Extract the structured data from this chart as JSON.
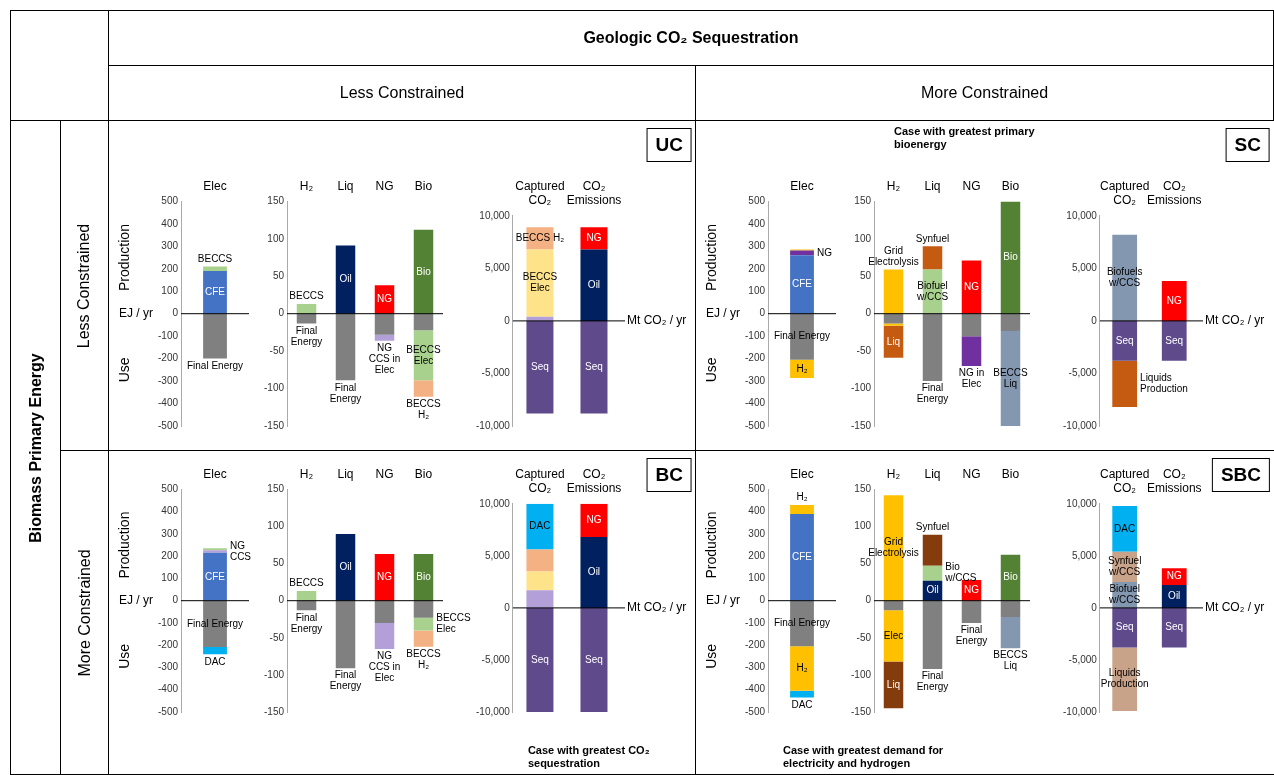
{
  "chart_data": [
    {
      "type": "other",
      "title": "Geologic CO₂ Sequestration",
      "annotations": [
        "Less Constrained",
        "More Constrained",
        "Biomass Primary Energy",
        "Less Constrained",
        "More Constrained",
        "UC",
        "SC",
        "BC",
        "SBC"
      ]
    },
    {
      "type": "bar",
      "stacked": true,
      "categories": [
        "Elec"
      ],
      "ylabel": "EJ / yr",
      "ylim": [
        -500,
        500
      ],
      "yticks": [
        -500,
        -400,
        -300,
        -200,
        -100,
        0,
        100,
        200,
        300,
        400,
        500
      ],
      "series": [
        {
          "name": "CFE",
          "color": "#4472c4",
          "values": [
            190
          ]
        },
        {
          "name": "BECCS",
          "color": "#a9d18e",
          "values": [
            20
          ]
        },
        {
          "name": "Final Energy",
          "color": "#808080",
          "values": [
            -200
          ]
        }
      ],
      "annotations": [
        "Production",
        "Use"
      ]
    },
    {
      "type": "bar",
      "stacked": true,
      "categories": [
        "H₂",
        "Liq",
        "NG",
        "Bio"
      ],
      "ylim": [
        -150,
        150
      ],
      "yticks": [
        -150,
        -100,
        -50,
        0,
        50,
        100,
        150
      ],
      "series": [
        {
          "name": "BECCS",
          "color": "#a9d18e",
          "values": [
            13,
            null,
            null,
            null
          ]
        },
        {
          "name": "Oil",
          "color": "#002060",
          "values": [
            null,
            91,
            null,
            null
          ]
        },
        {
          "name": "NG",
          "color": "#ff0000",
          "values": [
            null,
            null,
            38,
            null
          ]
        },
        {
          "name": "Bio",
          "color": "#548235",
          "values": [
            null,
            null,
            null,
            112
          ]
        },
        {
          "name": "Final Energy",
          "color": "#808080",
          "values": [
            -13,
            null,
            null,
            null
          ]
        },
        {
          "name": "Final Energy",
          "color": "#808080",
          "values": [
            null,
            -89,
            null,
            null
          ]
        },
        {
          "color": "#808080",
          "values": [
            null,
            null,
            -28,
            -22
          ]
        },
        {
          "name": "NG CCS in Elec",
          "color": "#b4a0d8",
          "values": [
            null,
            null,
            -8,
            null
          ]
        },
        {
          "name": "BECCS Elec",
          "color": "#a9d18e",
          "values": [
            null,
            null,
            null,
            -67
          ]
        },
        {
          "name": "BECCS H₂",
          "color": "#f4b183",
          "values": [
            null,
            null,
            null,
            -22
          ]
        }
      ]
    },
    {
      "type": "bar",
      "stacked": true,
      "categories": [
        "Captured CO₂",
        "CO₂ Emissions"
      ],
      "ylabel": "Mt CO₂ / yr",
      "ylim": [
        -10000,
        10000
      ],
      "yticks": [
        {
          "value": -10000,
          "label": "-10,000"
        },
        {
          "value": -5000,
          "label": "-5,000"
        },
        0,
        {
          "value": 5000,
          "label": "5,000"
        },
        {
          "value": 10000,
          "label": "10,000"
        }
      ],
      "series": [
        {
          "color": "#b4a0d8",
          "values": [
            400,
            null
          ]
        },
        {
          "name": "BECCS Elec",
          "color": "#ffe38a",
          "values": [
            6400,
            null
          ]
        },
        {
          "name": "BECCS H₂",
          "color": "#f4b183",
          "values": [
            2100,
            null
          ]
        },
        {
          "name": "Oil",
          "color": "#002060",
          "values": [
            null,
            6800
          ]
        },
        {
          "name": "NG",
          "color": "#ff0000",
          "values": [
            null,
            2100
          ]
        },
        {
          "name": "Seq",
          "color": "#5f4b8b",
          "values": [
            -8800,
            null
          ]
        },
        {
          "name": "Seq",
          "color": "#5f4b8b",
          "values": [
            null,
            -8800
          ]
        }
      ]
    },
    {
      "type": "bar",
      "stacked": true,
      "categories": [
        "Elec"
      ],
      "ylabel": "EJ / yr",
      "ylim": [
        -500,
        500
      ],
      "yticks": [
        -500,
        -400,
        -300,
        -200,
        -100,
        0,
        100,
        200,
        300,
        400,
        500
      ],
      "series": [
        {
          "name": "CFE",
          "color": "#4472c4",
          "values": [
            260
          ]
        },
        {
          "name": "NG",
          "color": "#7030a0",
          "values": [
            21
          ]
        },
        {
          "color": "#ffc000",
          "values": [
            5
          ]
        },
        {
          "name": "Final Energy",
          "color": "#808080",
          "values": [
            -205
          ]
        },
        {
          "name": "H₂",
          "color": "#ffc000",
          "values": [
            -81
          ]
        }
      ],
      "annotations": [
        "Production",
        "Use"
      ]
    },
    {
      "type": "bar",
      "stacked": true,
      "subtitle": "Case with greatest primary bioenergy",
      "categories": [
        "H₂",
        "Liq",
        "NG",
        "Bio"
      ],
      "ylim": [
        -150,
        150
      ],
      "yticks": [
        -150,
        -100,
        -50,
        0,
        50,
        100,
        150
      ],
      "series": [
        {
          "name": "Grid Electrolysis",
          "color": "#ffc000",
          "values": [
            59,
            null,
            null,
            null
          ]
        },
        {
          "name": "Biofuel w/CCS",
          "color": "#a9d18e",
          "values": [
            null,
            59,
            null,
            null
          ]
        },
        {
          "name": "Synfuel",
          "color": "#c55a11",
          "values": [
            null,
            31,
            null,
            null
          ]
        },
        {
          "name": "NG",
          "color": "#ff0000",
          "values": [
            null,
            null,
            71,
            null
          ]
        },
        {
          "name": "Bio",
          "color": "#548235",
          "values": [
            null,
            null,
            null,
            150
          ]
        },
        {
          "color": "#808080",
          "values": [
            -13,
            null,
            -30,
            -23
          ]
        },
        {
          "name": "Final Energy",
          "color": "#808080",
          "values": [
            null,
            -90,
            null,
            null
          ]
        },
        {
          "color": "#ffc000",
          "values": [
            -3,
            null,
            null,
            null
          ]
        },
        {
          "name": "Liq",
          "color": "#c55a11",
          "values": [
            -43,
            null,
            null,
            null
          ]
        },
        {
          "name": "NG in Elec",
          "color": "#7030a0",
          "values": [
            null,
            null,
            -40,
            null
          ]
        },
        {
          "name": "BECCS Liq",
          "color": "#8497b0",
          "values": [
            null,
            null,
            null,
            -127
          ]
        }
      ]
    },
    {
      "type": "bar",
      "stacked": true,
      "categories": [
        "Captured CO₂",
        "CO₂ Emissions"
      ],
      "ylabel": "Mt CO₂ / yr",
      "ylim": [
        -10000,
        10000
      ],
      "yticks": [
        {
          "value": -10000,
          "label": "-10,000"
        },
        {
          "value": -5000,
          "label": "-5,000"
        },
        0,
        {
          "value": 5000,
          "label": "5,000"
        },
        {
          "value": 10000,
          "label": "10,000"
        }
      ],
      "series": [
        {
          "name": "Biofuels w/CCS",
          "color": "#8497b0",
          "values": [
            8200,
            null
          ]
        },
        {
          "name": "NG",
          "color": "#ff0000",
          "values": [
            null,
            3800
          ]
        },
        {
          "name": "Seq",
          "color": "#5f4b8b",
          "values": [
            -3800,
            null
          ]
        },
        {
          "name": "Seq",
          "color": "#5f4b8b",
          "values": [
            null,
            -3800
          ]
        },
        {
          "name": "Liquids Production",
          "color": "#c55a11",
          "values": [
            -4400,
            null
          ]
        }
      ]
    },
    {
      "type": "bar",
      "stacked": true,
      "categories": [
        "Elec"
      ],
      "ylabel": "EJ / yr",
      "ylim": [
        -500,
        500
      ],
      "yticks": [
        -500,
        -400,
        -300,
        -200,
        -100,
        0,
        100,
        200,
        300,
        400,
        500
      ],
      "series": [
        {
          "name": "CFE",
          "color": "#4472c4",
          "values": [
            215
          ]
        },
        {
          "name": "NG CCS",
          "color": "#b4a0d8",
          "values": [
            12
          ]
        },
        {
          "color": "#a9d18e",
          "values": [
            9
          ]
        },
        {
          "name": "Final Energy",
          "color": "#808080",
          "values": [
            -208
          ]
        },
        {
          "name": "DAC",
          "color": "#00b0f0",
          "values": [
            -33
          ]
        }
      ],
      "annotations": [
        "Production",
        "Use"
      ]
    },
    {
      "type": "bar",
      "stacked": true,
      "categories": [
        "H₂",
        "Liq",
        "NG",
        "Bio"
      ],
      "ylim": [
        -150,
        150
      ],
      "yticks": [
        -150,
        -100,
        -50,
        0,
        50,
        100,
        150
      ],
      "series": [
        {
          "name": "BECCS",
          "color": "#a9d18e",
          "values": [
            13,
            null,
            null,
            null
          ]
        },
        {
          "name": "Oil",
          "color": "#002060",
          "values": [
            null,
            90,
            null,
            null
          ]
        },
        {
          "name": "NG",
          "color": "#ff0000",
          "values": [
            null,
            null,
            63,
            null
          ]
        },
        {
          "name": "Bio",
          "color": "#548235",
          "values": [
            null,
            null,
            null,
            63
          ]
        },
        {
          "name": "Final Energy",
          "color": "#808080",
          "values": [
            -13,
            null,
            null,
            null
          ]
        },
        {
          "name": "Final Energy",
          "color": "#808080",
          "values": [
            null,
            -91,
            null,
            null
          ]
        },
        {
          "color": "#808080",
          "values": [
            null,
            null,
            -30,
            -23
          ]
        },
        {
          "name": "NG CCS in Elec",
          "color": "#b4a0d8",
          "values": [
            null,
            null,
            -35,
            null
          ]
        },
        {
          "name": "BECCS Elec",
          "color": "#a9d18e",
          "values": [
            null,
            null,
            null,
            -17
          ]
        },
        {
          "name": "BECCS H₂",
          "color": "#f4b183",
          "values": [
            null,
            null,
            null,
            -22
          ]
        }
      ]
    },
    {
      "type": "bar",
      "stacked": true,
      "subtitle": "Case with greatest CO₂ sequestration",
      "categories": [
        "Captured CO₂",
        "CO₂ Emissions"
      ],
      "ylabel": "Mt CO₂ / yr",
      "ylim": [
        -10000,
        10000
      ],
      "yticks": [
        {
          "value": -10000,
          "label": "-10,000"
        },
        {
          "value": -5000,
          "label": "-5,000"
        },
        0,
        {
          "value": 5000,
          "label": "5,000"
        },
        {
          "value": 10000,
          "label": "10,000"
        }
      ],
      "series": [
        {
          "color": "#b4a0d8",
          "values": [
            1700,
            null
          ]
        },
        {
          "color": "#ffe38a",
          "values": [
            1800,
            null
          ]
        },
        {
          "color": "#f4b183",
          "values": [
            2100,
            null
          ]
        },
        {
          "name": "DAC",
          "color": "#00b0f0",
          "values": [
            4400,
            null
          ]
        },
        {
          "name": "Oil",
          "color": "#002060",
          "values": [
            null,
            6800
          ]
        },
        {
          "name": "NG",
          "color": "#ff0000",
          "values": [
            null,
            3200
          ]
        },
        {
          "name": "Seq",
          "color": "#5f4b8b",
          "values": [
            -10000,
            null
          ]
        },
        {
          "name": "Seq",
          "color": "#5f4b8b",
          "values": [
            null,
            -10000
          ]
        }
      ]
    },
    {
      "type": "bar",
      "stacked": true,
      "subtitle": "Case with greatest demand for electricity and hydrogen",
      "categories": [
        "Elec"
      ],
      "ylabel": "EJ / yr",
      "ylim": [
        -500,
        500
      ],
      "yticks": [
        -500,
        -400,
        -300,
        -200,
        -100,
        0,
        100,
        200,
        300,
        400,
        500
      ],
      "series": [
        {
          "name": "CFE",
          "color": "#4472c4",
          "values": [
            390
          ]
        },
        {
          "name": "H₂",
          "color": "#ffc000",
          "values": [
            40
          ]
        },
        {
          "name": "Final Energy",
          "color": "#808080",
          "values": [
            -205
          ]
        },
        {
          "name": "H₂",
          "color": "#ffc000",
          "values": [
            -200
          ]
        },
        {
          "name": "DAC",
          "color": "#00b0f0",
          "values": [
            -30
          ]
        }
      ],
      "annotations": [
        "Production",
        "Use"
      ]
    },
    {
      "type": "bar",
      "stacked": true,
      "categories": [
        "H₂",
        "Liq",
        "NG",
        "Bio"
      ],
      "ylim": [
        -150,
        150
      ],
      "yticks": [
        -150,
        -100,
        -50,
        0,
        50,
        100,
        150
      ],
      "series": [
        {
          "name": "Grid Electrolysis",
          "color": "#ffc000",
          "values": [
            142,
            null,
            null,
            null
          ]
        },
        {
          "name": "Oil",
          "color": "#002060",
          "values": [
            null,
            27,
            null,
            null
          ]
        },
        {
          "name": "Bio w/CCS",
          "color": "#a9d18e",
          "values": [
            null,
            20,
            null,
            null
          ]
        },
        {
          "name": "Synfuel",
          "color": "#843c0c",
          "values": [
            null,
            42,
            null,
            null
          ]
        },
        {
          "name": "NG",
          "color": "#ff0000",
          "values": [
            null,
            null,
            28,
            null
          ]
        },
        {
          "name": "Bio",
          "color": "#548235",
          "values": [
            null,
            null,
            null,
            62
          ]
        },
        {
          "color": "#808080",
          "values": [
            -13,
            null,
            null,
            -22
          ]
        },
        {
          "name": "Final Energy",
          "color": "#808080",
          "values": [
            null,
            -92,
            null,
            null
          ]
        },
        {
          "name": "Final Energy",
          "color": "#808080",
          "values": [
            null,
            null,
            -30,
            null
          ]
        },
        {
          "name": "Elec",
          "color": "#ffc000",
          "values": [
            -69,
            null,
            null,
            null
          ]
        },
        {
          "name": "Liq",
          "color": "#843c0c",
          "values": [
            -63,
            null,
            null,
            null
          ]
        },
        {
          "name": "BECCS Liq",
          "color": "#8497b0",
          "values": [
            null,
            null,
            null,
            -42
          ]
        }
      ]
    },
    {
      "type": "bar",
      "stacked": true,
      "categories": [
        "Captured CO₂",
        "CO₂ Emissions"
      ],
      "ylabel": "Mt CO₂ / yr",
      "ylim": [
        -10000,
        10000
      ],
      "yticks": [
        {
          "value": -10000,
          "label": "-10,000"
        },
        {
          "value": -5000,
          "label": "-5,000"
        },
        0,
        {
          "value": 5000,
          "label": "5,000"
        },
        {
          "value": 10000,
          "label": "10,000"
        }
      ],
      "series": [
        {
          "name": "Biofuel w/CCS",
          "color": "#8497b0",
          "values": [
            2500,
            null
          ]
        },
        {
          "name": "Synfuel w/CCS",
          "color": "#c9a28a",
          "values": [
            2900,
            null
          ]
        },
        {
          "name": "DAC",
          "color": "#00b0f0",
          "values": [
            4400,
            null
          ]
        },
        {
          "name": "Oil",
          "color": "#002060",
          "values": [
            null,
            2200
          ]
        },
        {
          "name": "NG",
          "color": "#ff0000",
          "values": [
            null,
            1600
          ]
        },
        {
          "name": "Seq",
          "color": "#5f4b8b",
          "values": [
            -3800,
            null
          ]
        },
        {
          "name": "Seq",
          "color": "#5f4b8b",
          "values": [
            null,
            -3800
          ]
        },
        {
          "name": "Liquids Production",
          "color": "#c9a28a",
          "values": [
            -6100,
            null
          ]
        }
      ]
    }
  ]
}
